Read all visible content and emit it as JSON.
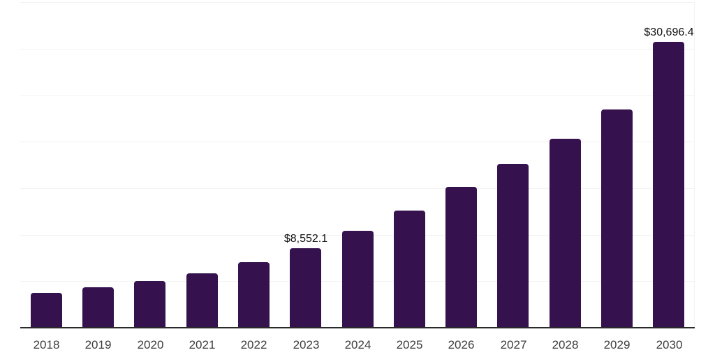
{
  "chart_data": {
    "type": "bar",
    "title": "",
    "xlabel": "",
    "ylabel": "",
    "categories": [
      "2018",
      "2019",
      "2020",
      "2021",
      "2022",
      "2023",
      "2024",
      "2025",
      "2026",
      "2027",
      "2028",
      "2029",
      "2030"
    ],
    "values": [
      3750,
      4350,
      5000,
      5870,
      7050,
      8552.1,
      10420,
      12610,
      15120,
      17620,
      20330,
      23480,
      30696.4
    ],
    "data_labels": [
      {
        "index": 5,
        "text": "$8,552.1"
      },
      {
        "index": 12,
        "text": "$30,696.4"
      }
    ],
    "ylim": [
      0,
      35000
    ],
    "gridline_step": 5000,
    "grid": "horizontal-only",
    "y_axis_tick_labels": "none",
    "legend": "none",
    "colors": {
      "bar": "#35124e",
      "axis_line": "#2a2a2a",
      "gridline": "#f2f2f2",
      "data_label": "#111111",
      "tick_label": "#3d3d3d",
      "background": "#ffffff"
    }
  }
}
